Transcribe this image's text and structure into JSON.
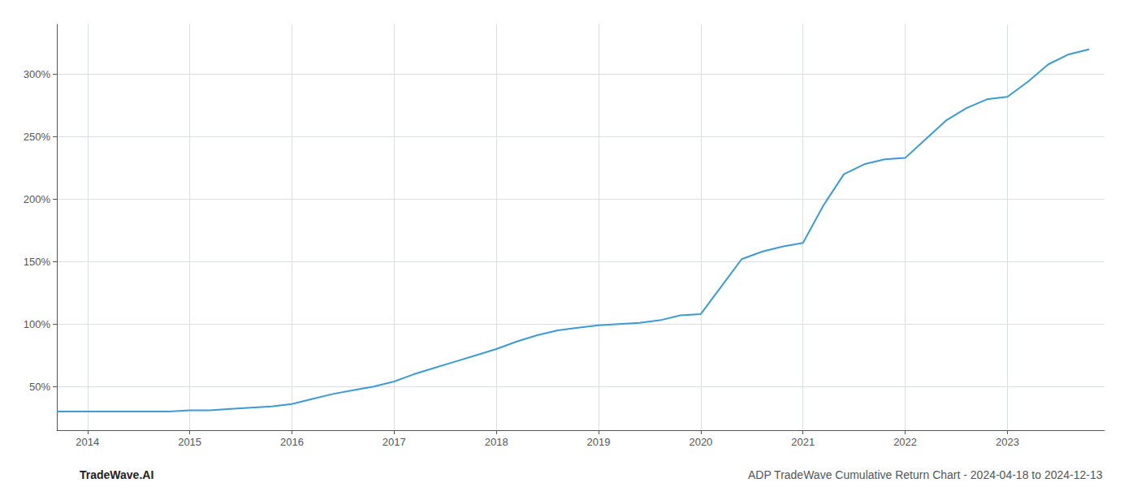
{
  "chart_data": {
    "type": "line",
    "x": [
      2013.7,
      2013.9,
      2014.0,
      2014.2,
      2014.4,
      2014.6,
      2014.8,
      2015.0,
      2015.2,
      2015.4,
      2015.6,
      2015.8,
      2016.0,
      2016.2,
      2016.4,
      2016.6,
      2016.8,
      2017.0,
      2017.2,
      2017.4,
      2017.6,
      2017.8,
      2018.0,
      2018.2,
      2018.4,
      2018.6,
      2018.8,
      2019.0,
      2019.2,
      2019.4,
      2019.6,
      2019.8,
      2020.0,
      2020.2,
      2020.4,
      2020.6,
      2020.8,
      2021.0,
      2021.2,
      2021.4,
      2021.6,
      2021.8,
      2022.0,
      2022.2,
      2022.4,
      2022.6,
      2022.8,
      2023.0,
      2023.2,
      2023.4,
      2023.6,
      2023.8
    ],
    "values": [
      30,
      30,
      30,
      30,
      30,
      30,
      30,
      31,
      31,
      32,
      33,
      34,
      36,
      40,
      44,
      47,
      50,
      54,
      60,
      65,
      70,
      75,
      80,
      86,
      91,
      95,
      97,
      99,
      100,
      101,
      103,
      107,
      108,
      130,
      152,
      158,
      162,
      165,
      195,
      220,
      228,
      232,
      233,
      248,
      263,
      273,
      280,
      282,
      294,
      308,
      316,
      320
    ],
    "color": "#3a9bd5",
    "xlim": [
      2013.7,
      2023.95
    ],
    "ylim": [
      15,
      340
    ],
    "xticks": [
      2014,
      2015,
      2016,
      2017,
      2018,
      2019,
      2020,
      2021,
      2022,
      2023
    ],
    "yticks": [
      {
        "value": 50,
        "label": "50%"
      },
      {
        "value": 100,
        "label": "100%"
      },
      {
        "value": 150,
        "label": "150%"
      },
      {
        "value": 200,
        "label": "200%"
      },
      {
        "value": 250,
        "label": "250%"
      },
      {
        "value": 300,
        "label": "300%"
      }
    ],
    "grid": true,
    "annotations": [
      "TradeWave.AI",
      "ADP TradeWave Cumulative Return Chart - 2024-04-18 to 2024-12-13"
    ]
  }
}
